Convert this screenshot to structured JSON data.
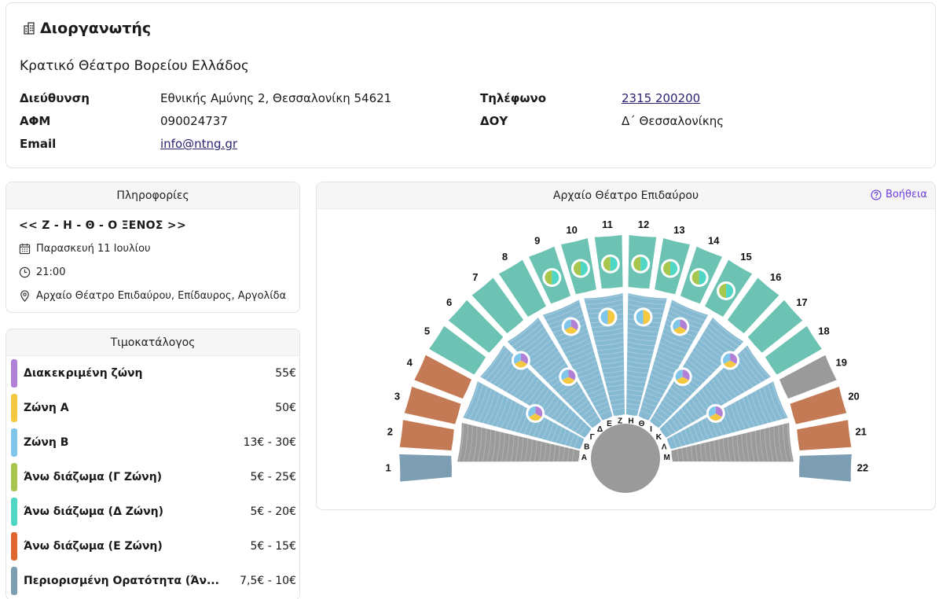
{
  "organizer": {
    "heading": "Διοργανωτής",
    "name": "Κρατικό Θέατρο Βορείου Ελλάδος",
    "address_label": "Διεύθυνση",
    "address": "Εθνικής Αμύνης 2, Θεσσαλονίκη 54621",
    "phone_label": "Τηλέφωνο",
    "phone": "2315 200200",
    "afm_label": "ΑΦΜ",
    "afm": "090024737",
    "doy_label": "ΔΟΥ",
    "doy": "Δ΄ Θεσσαλονίκης",
    "email_label": "Email",
    "email": "info@ntng.gr"
  },
  "info": {
    "heading": "Πληροφορίες",
    "show_title": "<< Ζ - Η - Θ - Ο ΞΕΝΟΣ >>",
    "date": "Παρασκευή 11 Ιουλίου",
    "time": "21:00",
    "venue": "Αρχαίο Θέατρο Επιδαύρου, Επίδαυρος, Αργολίδα"
  },
  "prices": {
    "heading": "Τιμοκατάλογος",
    "items": [
      {
        "label": "Διακεκριμένη ζώνη",
        "price": "55€",
        "color": "#b07fd6"
      },
      {
        "label": "Ζώνη Α",
        "price": "50€",
        "color": "#f5c842"
      },
      {
        "label": "Ζώνη Β",
        "price": "13€ - 30€",
        "color": "#7fc6ea"
      },
      {
        "label": "Άνω διάζωμα (Γ Ζώνη)",
        "price": "5€ - 25€",
        "color": "#a6c64e"
      },
      {
        "label": "Άνω διάζωμα (Δ Ζώνη)",
        "price": "5€ - 20€",
        "color": "#4fd6c4"
      },
      {
        "label": "Άνω διάζωμα (Ε Ζώνη)",
        "price": "5€ - 15€",
        "color": "#e0662e"
      },
      {
        "label": "Περιορισμένη Ορατότητα (Άν...",
        "price": "7,5€ - 10€",
        "color": "#7d9db2"
      }
    ]
  },
  "map": {
    "heading": "Αρχαίο Θέατρο Επιδαύρου",
    "help": "Βοήθεια",
    "section_numbers": [
      "1",
      "2",
      "3",
      "4",
      "5",
      "6",
      "7",
      "8",
      "9",
      "10",
      "11",
      "12",
      "13",
      "14",
      "15",
      "16",
      "17",
      "18",
      "19",
      "20",
      "21",
      "22"
    ],
    "row_letters": [
      "Α",
      "Β",
      "Γ",
      "Δ",
      "Ε",
      "Ζ",
      "Η",
      "Θ",
      "Ι",
      "Κ",
      "Λ",
      "Μ"
    ],
    "colors": {
      "teal": "#6cc3b3",
      "orange": "#c47a54",
      "gray": "#9a9a9a",
      "restricted": "#7d9db2",
      "blue": "#86b9d2",
      "blue_light": "#a9cfe0"
    }
  }
}
